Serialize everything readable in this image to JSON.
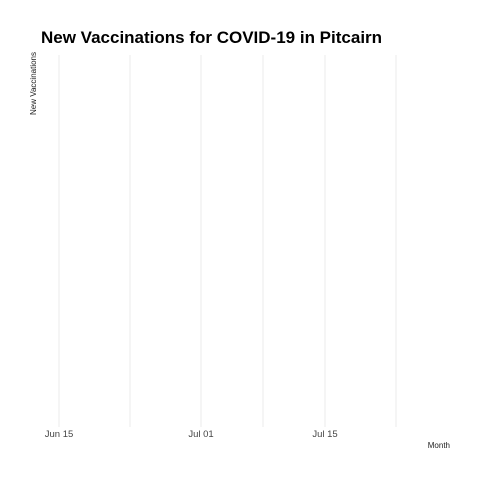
{
  "chart_data": {
    "type": "line",
    "title": "New Vaccinations for COVID-19 in Pitcairn",
    "xlabel": "Month",
    "ylabel": "New Vaccinations",
    "x_tick_labels": [
      "Jun 15",
      "Jul 01",
      "Jul 15"
    ],
    "x_range": [
      "2021-06-15",
      "2021-07-30"
    ],
    "y_tick_labels": [],
    "series": [],
    "grid": true
  }
}
